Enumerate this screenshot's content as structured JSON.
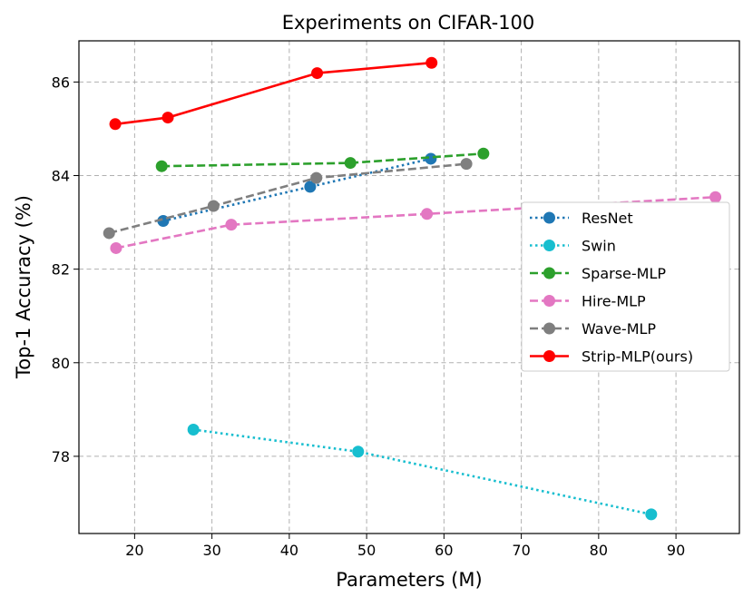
{
  "chart_data": {
    "type": "line",
    "title": "Experiments on CIFAR-100",
    "xlabel": "Parameters (M)",
    "ylabel": "Top-1 Accuracy (%)",
    "xlim": [
      12.8,
      98.2
    ],
    "ylim": [
      76.35,
      86.88
    ],
    "xticks": [
      20,
      30,
      40,
      50,
      60,
      70,
      80,
      90
    ],
    "yticks": [
      78,
      80,
      82,
      84,
      86
    ],
    "grid": true,
    "legend_position": "center-right",
    "series": [
      {
        "name": "ResNet",
        "color": "#1f77b4",
        "linestyle": "dotted",
        "x": [
          23.7,
          42.7,
          58.3
        ],
        "y": [
          83.03,
          83.76,
          84.36
        ]
      },
      {
        "name": "Swin",
        "color": "#17becf",
        "linestyle": "dotted",
        "x": [
          27.6,
          48.9,
          86.8
        ],
        "y": [
          78.57,
          78.1,
          76.76
        ]
      },
      {
        "name": "Sparse-MLP",
        "color": "#2ca02c",
        "linestyle": "dashed",
        "x": [
          23.5,
          47.9,
          65.1
        ],
        "y": [
          84.2,
          84.27,
          84.47
        ]
      },
      {
        "name": "Hire-MLP",
        "color": "#e377c2",
        "linestyle": "dashed",
        "x": [
          17.6,
          32.5,
          57.8,
          95.1
        ],
        "y": [
          82.45,
          82.95,
          83.18,
          83.54
        ]
      },
      {
        "name": "Wave-MLP",
        "color": "#7f7f7f",
        "linestyle": "dashed",
        "x": [
          16.7,
          30.2,
          43.5,
          62.9
        ],
        "y": [
          82.77,
          83.35,
          83.95,
          84.25
        ]
      },
      {
        "name": "Strip-MLP(ours)",
        "color": "#ff0000",
        "linestyle": "solid",
        "x": [
          17.5,
          24.3,
          43.6,
          58.4
        ],
        "y": [
          85.1,
          85.24,
          86.19,
          86.41
        ]
      }
    ]
  }
}
